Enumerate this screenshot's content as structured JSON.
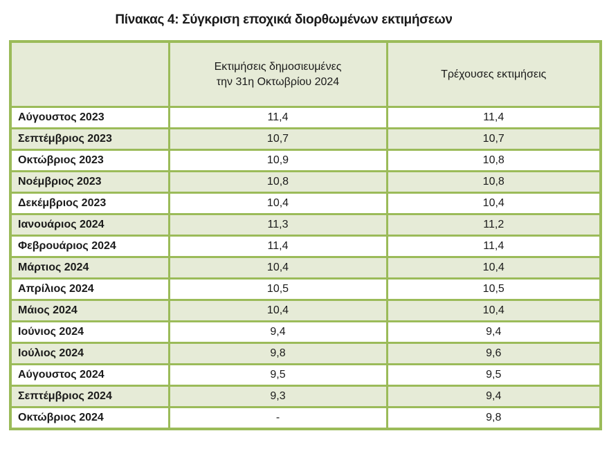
{
  "caption": "Πίνακας 4: Σύγκριση εποχικά διορθωμένων εκτιμήσεων",
  "table": {
    "headers": {
      "col1": "",
      "col2_line1": "Εκτιμήσεις δημοσιευμένες",
      "col2_line2": "την 31η Οκτωβρίου 2024",
      "col3": "Τρέχουσες εκτιμήσεις"
    },
    "rows": [
      {
        "month": "Αύγουστος 2023",
        "published": "11,4",
        "current": "11,4"
      },
      {
        "month": "Σεπτέμβριος 2023",
        "published": "10,7",
        "current": "10,7"
      },
      {
        "month": "Οκτώβριος 2023",
        "published": "10,9",
        "current": "10,8"
      },
      {
        "month": "Νοέμβριος 2023",
        "published": "10,8",
        "current": "10,8"
      },
      {
        "month": "Δεκέμβριος 2023",
        "published": "10,4",
        "current": "10,4"
      },
      {
        "month": "Ιανουάριος 2024",
        "published": "11,3",
        "current": "11,2"
      },
      {
        "month": "Φεβρουάριος 2024",
        "published": "11,4",
        "current": "11,4"
      },
      {
        "month": "Μάρτιος 2024",
        "published": "10,4",
        "current": "10,4"
      },
      {
        "month": "Απρίλιος 2024",
        "published": "10,5",
        "current": "10,5"
      },
      {
        "month": "Μάιος 2024",
        "published": "10,4",
        "current": "10,4"
      },
      {
        "month": "Ιούνιος 2024",
        "published": "9,4",
        "current": "9,4"
      },
      {
        "month": "Ιούλιος 2024",
        "published": "9,8",
        "current": "9,6"
      },
      {
        "month": "Αύγουστος 2024",
        "published": "9,5",
        "current": "9,5"
      },
      {
        "month": "Σεπτέμβριος 2024",
        "published": "9,3",
        "current": "9,4"
      },
      {
        "month": "Οκτώβριος 2024",
        "published": "-",
        "current": "9,8"
      }
    ]
  },
  "colors": {
    "border": "#9bbb59",
    "band": "#e6ebd7",
    "white": "#ffffff"
  }
}
